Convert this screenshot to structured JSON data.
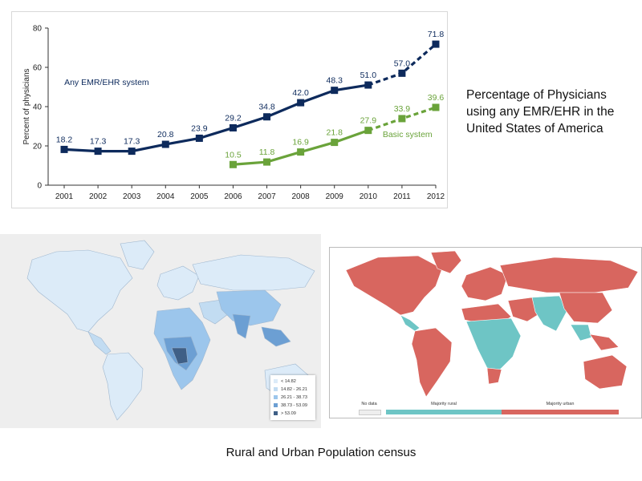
{
  "chart_data": {
    "type": "line",
    "title": "",
    "ylabel": "Percent of physicians",
    "xlabel": "",
    "ylim": [
      0,
      80
    ],
    "yticks": [
      "0",
      "20",
      "40",
      "60",
      "80"
    ],
    "categories": [
      "2001",
      "2002",
      "2003",
      "2004",
      "2005",
      "2006",
      "2007",
      "2008",
      "2009",
      "2010",
      "2011",
      "2012"
    ],
    "series": [
      {
        "name": "Any EMR/EHR system",
        "color": "#0d2a5c",
        "solid_x": [
          "2001",
          "2002",
          "2003",
          "2004",
          "2005",
          "2006",
          "2007",
          "2008",
          "2009",
          "2010"
        ],
        "solid_values": [
          18.2,
          17.3,
          17.3,
          20.8,
          23.9,
          29.2,
          34.8,
          42.0,
          48.3,
          51.0
        ],
        "dashed_x": [
          "2010",
          "2011",
          "2012"
        ],
        "dashed_values": [
          51.0,
          57.0,
          71.8
        ],
        "value_labels": [
          "18.2",
          "17.3",
          "17.3",
          "20.8",
          "23.9",
          "29.2",
          "34.8",
          "42.0",
          "48.3",
          "51.0",
          "57.0",
          "71.8"
        ],
        "label_x": [
          "2001",
          "2002",
          "2003",
          "2004",
          "2005",
          "2006",
          "2007",
          "2008",
          "2009",
          "2010",
          "2011",
          "2012"
        ]
      },
      {
        "name": "Basic system",
        "color": "#6aa33a",
        "solid_x": [
          "2006",
          "2007",
          "2008",
          "2009",
          "2010"
        ],
        "solid_values": [
          10.5,
          11.8,
          16.9,
          21.8,
          27.9
        ],
        "dashed_x": [
          "2010",
          "2011",
          "2012"
        ],
        "dashed_values": [
          27.9,
          33.9,
          39.6
        ],
        "value_labels": [
          "10.5",
          "11.8",
          "16.9",
          "21.8",
          "27.9",
          "33.9",
          "39.6"
        ],
        "label_x": [
          "2006",
          "2007",
          "2008",
          "2009",
          "2010",
          "2011",
          "2012"
        ]
      }
    ]
  },
  "chart_caption": "Percentage of Physicians using any EMR/EHR in the United States of America",
  "map_left": {
    "legend": [
      {
        "label": "< 14.82",
        "color": "#dcebf8"
      },
      {
        "label": "14.82 - 26.21",
        "color": "#c2dcf2"
      },
      {
        "label": "26.21 - 38.73",
        "color": "#9cc6ec"
      },
      {
        "label": "38.73 - 53.09",
        "color": "#6c9fd3"
      },
      {
        "label": "> 53.09",
        "color": "#3f5f86"
      }
    ]
  },
  "map_right": {
    "legend": {
      "no_data": "No data",
      "rural": "Majority rural",
      "urban": "Majority urban"
    },
    "colors": {
      "rural": "#6ec5c5",
      "urban": "#d8665f",
      "no_data": "#eeeeee"
    }
  },
  "bottom_caption": "Rural and Urban Population census"
}
